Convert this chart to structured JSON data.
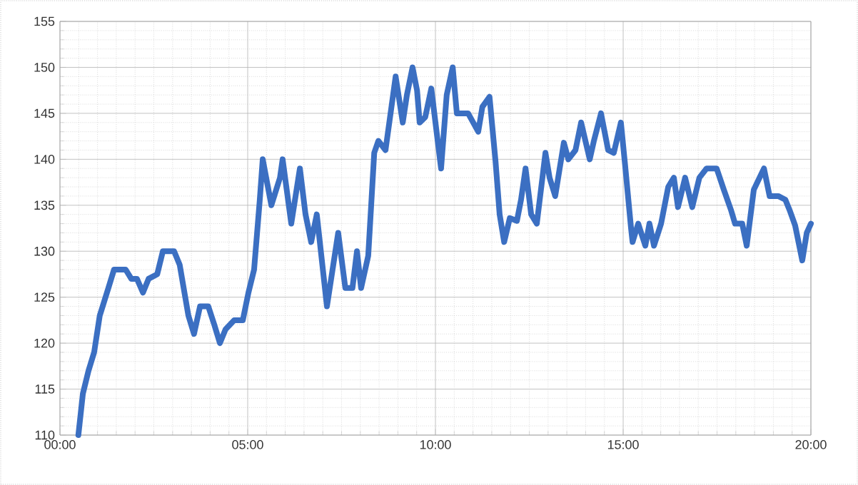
{
  "chart_data": {
    "type": "line",
    "color": "#3b6fc2",
    "line_style": "solid",
    "marker": "none",
    "grid": true,
    "x": [
      0.49,
      0.61,
      0.76,
      0.91,
      1.06,
      1.29,
      1.44,
      1.75,
      1.9,
      2.05,
      2.21,
      2.36,
      2.59,
      2.74,
      3.04,
      3.19,
      3.42,
      3.57,
      3.73,
      3.95,
      4.11,
      4.26,
      4.41,
      4.64,
      4.87,
      5.02,
      5.17,
      5.32,
      5.4,
      5.63,
      5.86,
      5.93,
      6.16,
      6.39,
      6.54,
      6.69,
      6.84,
      7.11,
      7.41,
      7.6,
      7.79,
      7.91,
      8.02,
      8.21,
      8.37,
      8.48,
      8.67,
      8.94,
      9.13,
      9.24,
      9.39,
      9.51,
      9.58,
      9.73,
      9.89,
      10.0,
      10.15,
      10.3,
      10.46,
      10.57,
      10.87,
      11.14,
      11.25,
      11.44,
      11.6,
      11.71,
      11.83,
      11.98,
      12.17,
      12.28,
      12.4,
      12.55,
      12.7,
      12.93,
      13.04,
      13.19,
      13.42,
      13.54,
      13.73,
      13.88,
      14.11,
      14.22,
      14.41,
      14.6,
      14.75,
      14.94,
      15.06,
      15.21,
      15.25,
      15.4,
      15.59,
      15.7,
      15.82,
      16.01,
      16.2,
      16.35,
      16.46,
      16.65,
      16.84,
      17.03,
      17.22,
      17.49,
      17.68,
      17.87,
      17.98,
      18.17,
      18.29,
      18.48,
      18.75,
      18.9,
      19.13,
      19.32,
      19.43,
      19.58,
      19.77,
      19.89,
      20.0
    ],
    "values": [
      110,
      114.5,
      117,
      119,
      123,
      126,
      128,
      128,
      127,
      127,
      125.5,
      127,
      127.5,
      130,
      130,
      128.5,
      123,
      121,
      124,
      124,
      122,
      120,
      121.5,
      122.5,
      122.5,
      125.5,
      128,
      135.5,
      140,
      135,
      138,
      140,
      133,
      139,
      134,
      131,
      134,
      124,
      132,
      126,
      126,
      130,
      126,
      129.5,
      140.7,
      142,
      141,
      149,
      144,
      147,
      150,
      147.5,
      144,
      144.6,
      147.7,
      144,
      139,
      147,
      150,
      145,
      145,
      143,
      145.7,
      146.8,
      139.8,
      134,
      131,
      133.6,
      133.3,
      135.6,
      139,
      134,
      133,
      140.7,
      138,
      136,
      141.8,
      140,
      141,
      144,
      140,
      142,
      145,
      141,
      140.7,
      144,
      139,
      132.5,
      131,
      133,
      130.6,
      133,
      130.6,
      133,
      137,
      138,
      134.8,
      138,
      134.8,
      138,
      139,
      139,
      136.7,
      134.5,
      133,
      133,
      130.6,
      136.7,
      139,
      136,
      136,
      135.6,
      134.5,
      132.8,
      129,
      132,
      133
    ],
    "xlim": [
      0,
      20
    ],
    "xticks": [
      {
        "value": 0,
        "label": "00:00"
      },
      {
        "value": 5,
        "label": "05:00"
      },
      {
        "value": 10,
        "label": "10:00"
      },
      {
        "value": 15,
        "label": "15:00"
      },
      {
        "value": 20,
        "label": "20:00"
      }
    ],
    "ylim": [
      110,
      155
    ],
    "yticks": [
      110,
      115,
      120,
      125,
      130,
      135,
      140,
      145,
      150,
      155
    ]
  }
}
